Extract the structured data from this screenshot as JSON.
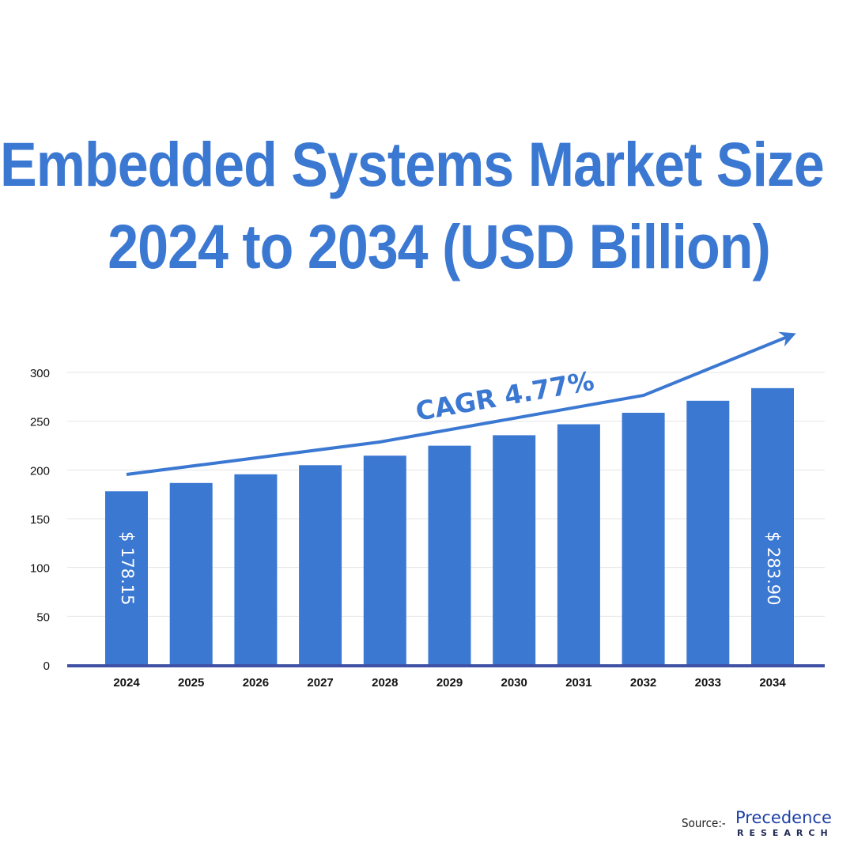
{
  "title": {
    "line1": "Embedded Systems Market Size",
    "line2": "2024 to 2034 (USD Billion)"
  },
  "chart_data": {
    "type": "bar",
    "categories": [
      "2024",
      "2025",
      "2026",
      "2027",
      "2028",
      "2029",
      "2030",
      "2031",
      "2032",
      "2033",
      "2034"
    ],
    "values": [
      178.15,
      186.65,
      195.55,
      204.88,
      214.65,
      224.89,
      235.62,
      246.86,
      258.63,
      270.97,
      283.9
    ],
    "ylim": [
      0,
      300
    ],
    "yticks": [
      0,
      50,
      100,
      150,
      200,
      250,
      300
    ],
    "grid": true,
    "bar_color": "#3b78d2",
    "data_labels": [
      {
        "category": "2024",
        "text": "$ 178.15"
      },
      {
        "category": "2034",
        "text": "$ 283.90"
      }
    ],
    "annotation": {
      "text": "CAGR 4.77%",
      "color": "#3b78d2"
    }
  },
  "source": {
    "label": "Source:-",
    "brand": "Precedence",
    "brand_sub": "RESEARCH"
  }
}
